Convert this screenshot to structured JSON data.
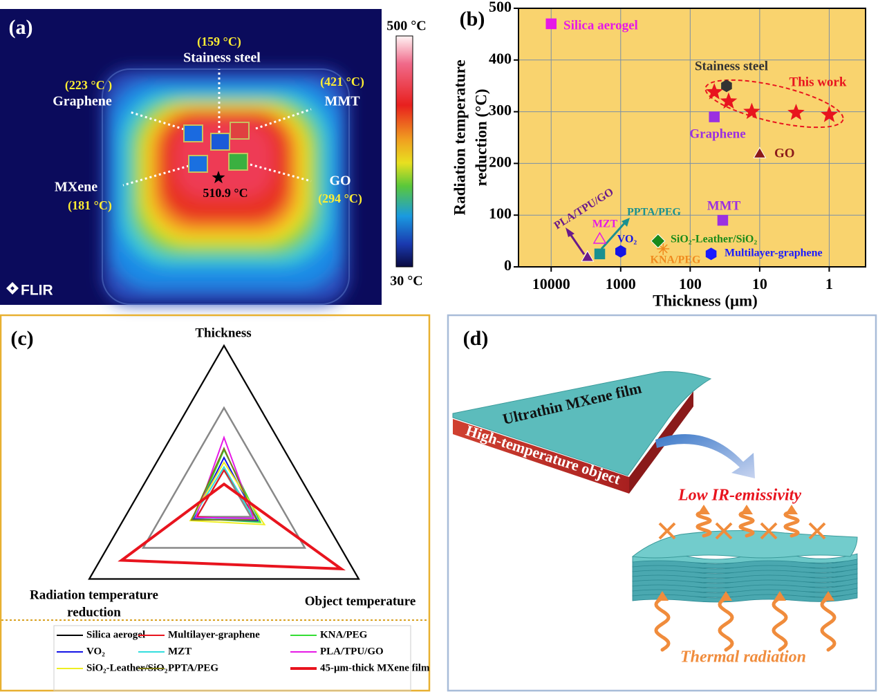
{
  "chart_data": [
    {
      "type": "scatter",
      "label": "(b)",
      "xlabel": "Thickness (μm)",
      "ylabel": [
        "Radiation temperature",
        "reduction (°C)"
      ],
      "xscale": "log",
      "xlim": [
        29500,
        0.3
      ],
      "xticks": [
        10000,
        1000,
        100,
        10,
        1
      ],
      "ylim": [
        0,
        500
      ],
      "yticks": [
        0,
        100,
        200,
        300,
        400,
        500
      ],
      "grid": true,
      "background": "#f9d36e",
      "series": [
        {
          "name": "Silica aerogel",
          "color": "#e619e6",
          "marker": "square",
          "x": [
            10000
          ],
          "values": [
            470
          ]
        },
        {
          "name": "Stainess steel",
          "color": "#333333",
          "marker": "hexagon",
          "x": [
            30
          ],
          "values": [
            350
          ]
        },
        {
          "name": "This work",
          "color": "#e8141e",
          "marker": "star",
          "x": [
            45,
            28,
            13,
            3,
            1
          ],
          "values": [
            338,
            320,
            300,
            298,
            294
          ]
        },
        {
          "name": "Graphene",
          "color": "#9b30e0",
          "marker": "square",
          "x": [
            45
          ],
          "values": [
            290
          ]
        },
        {
          "name": "GO",
          "color": "#8b1a1a",
          "marker": "triangle",
          "x": [
            10
          ],
          "values": [
            220
          ]
        },
        {
          "name": "MMT",
          "color": "#9b30e0",
          "marker": "square",
          "x": [
            34
          ],
          "values": [
            90
          ]
        },
        {
          "name": "Multilayer-graphene",
          "color": "#1a1aff",
          "marker": "hexagon",
          "x": [
            50
          ],
          "values": [
            25
          ]
        },
        {
          "name": "KNA/PEG",
          "color": "#f08a1e",
          "marker": "asterisk",
          "x": [
            245
          ],
          "values": [
            35
          ]
        },
        {
          "name": "SiO₂-Leather/SiO₂",
          "color": "#1a8a1a",
          "marker": "diamond",
          "x": [
            290
          ],
          "values": [
            50
          ]
        },
        {
          "name": "VO₂",
          "color": "#1414e6",
          "marker": "hexagon",
          "x": [
            1000
          ],
          "values": [
            30
          ]
        },
        {
          "name": "PPTA/PEG",
          "color": "#1a9090",
          "marker": "square",
          "x": [
            2000
          ],
          "values": [
            25
          ]
        },
        {
          "name": "MZT",
          "color": "#e619e6",
          "marker": "open-triangle",
          "x": [
            2000
          ],
          "values": [
            55
          ]
        },
        {
          "name": "PLA/TPU/GO",
          "color": "#6a1a8a",
          "marker": "triangle",
          "x": [
            3000
          ],
          "values": [
            20
          ]
        }
      ]
    },
    {
      "type": "radar",
      "label": "(c)",
      "axes": [
        [
          "Thickness"
        ],
        [
          "Object temperature"
        ],
        [
          "Radiation temperature",
          "reduction"
        ]
      ],
      "rlim": [
        0,
        1
      ],
      "rticks": [
        0.2,
        0.6,
        1
      ],
      "series": [
        {
          "name": "Silica aerogel",
          "color": "#000000",
          "linewidth": 2,
          "values": [
            1,
            1,
            1
          ]
        },
        {
          "name": "Multilayer-graphene",
          "color": "#e8141e",
          "linewidth": 2,
          "values": [
            0.2,
            0.25,
            0.2
          ]
        },
        {
          "name": "KNA/PEG",
          "color": "#33dd33",
          "linewidth": 2,
          "values": [
            0.33,
            0.27,
            0.22
          ]
        },
        {
          "name": "VO₂",
          "color": "#1414e6",
          "linewidth": 2,
          "values": [
            0.28,
            0.25,
            0.23
          ]
        },
        {
          "name": "MZT",
          "color": "#33dddd",
          "linewidth": 2,
          "values": [
            0.22,
            0.22,
            0.24
          ]
        },
        {
          "name": "PLA/TPU/GO",
          "color": "#e619e6",
          "linewidth": 2,
          "values": [
            0.41,
            0.22,
            0.21
          ]
        },
        {
          "name": "SiO₂-Leather/SiO₂",
          "color": "#eeee22",
          "linewidth": 2,
          "values": [
            0.25,
            0.3,
            0.25
          ]
        },
        {
          "name": "PPTA/PEG",
          "color": "#7a7a1a",
          "linewidth": 2,
          "values": [
            0.34,
            0.24,
            0.24
          ]
        },
        {
          "name": "45-μm-thick MXene film",
          "color": "#e8141e",
          "linewidth": 4,
          "values": [
            0.11,
            0.87,
            0.76
          ]
        }
      ]
    }
  ],
  "thermal_image": {
    "label": "(a)",
    "samples": [
      {
        "name": "Stainess steel",
        "temperature": "(159 °C)"
      },
      {
        "name": "Graphene",
        "temperature": "(223 °C )"
      },
      {
        "name": "MMT",
        "temperature": "(421 °C)"
      },
      {
        "name": "MXene",
        "temperature": "(181 °C)"
      },
      {
        "name": "GO",
        "temperature": "(294 °C)"
      }
    ],
    "hotspot": "510.9 °C",
    "colorbar": {
      "max": "500 °C",
      "min": "30 °C"
    },
    "logo": "FLIR"
  },
  "diagram": {
    "label": "(d)",
    "film": "Ultrathin MXene film",
    "object": "High-temperature object",
    "effect": "Low IR-emissivity",
    "radiation": "Thermal radiation"
  }
}
